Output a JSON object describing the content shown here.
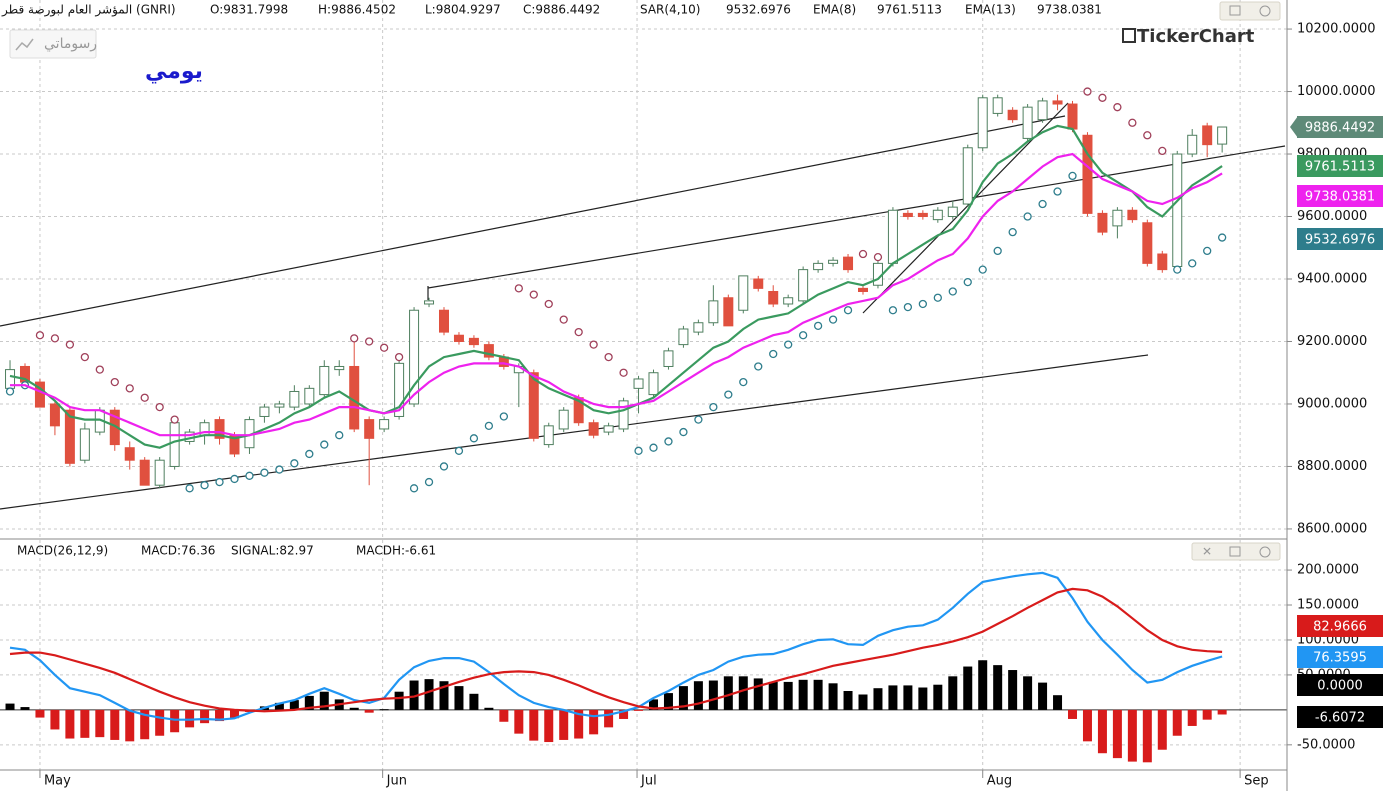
{
  "header": {
    "interval": "يومي",
    "drawings_button": "رسوماتي",
    "logo": "TickerChart"
  },
  "chart_data": [
    {
      "type": "candlestick",
      "title": "المؤشر العام لبورصة قطر (GNRI)",
      "ohlc_labels": [
        "O:9831.7998",
        "H:9886.4502",
        "L:9804.9297",
        "C:9886.4492"
      ],
      "close_badge": "9886.4492",
      "up_color": "#ffffff",
      "up_edge": "#4f7f5f",
      "down_color": "#e0503f",
      "badge_color": "#5e8a78",
      "x": [
        0,
        1,
        2,
        3,
        4,
        5,
        6,
        7,
        8,
        9,
        10,
        11,
        12,
        13,
        14,
        15,
        16,
        17,
        18,
        19,
        20,
        21,
        22,
        23,
        24,
        25,
        26,
        27,
        28,
        29,
        30,
        31,
        32,
        33,
        34,
        35,
        36,
        37,
        38,
        39,
        40,
        41,
        42,
        43,
        44,
        45,
        46,
        47,
        48,
        49,
        50,
        51,
        52,
        53,
        54,
        55,
        56,
        57,
        58,
        59,
        60,
        61,
        62,
        63,
        64,
        65,
        66,
        67,
        68,
        69,
        70,
        71,
        72,
        73,
        74,
        75,
        76,
        77,
        78,
        79,
        80,
        81
      ],
      "open": [
        9050,
        9120,
        9070,
        9000,
        8980,
        8820,
        8910,
        8980,
        8860,
        8820,
        8740,
        8800,
        8880,
        8900,
        8950,
        8900,
        8860,
        8960,
        8990,
        8990,
        9000,
        9030,
        9110,
        9120,
        8950,
        8920,
        8960,
        9000,
        9320,
        9300,
        9220,
        9210,
        9190,
        9150,
        9100,
        9100,
        8870,
        8920,
        9020,
        8940,
        8910,
        8920,
        9050,
        9030,
        9120,
        9190,
        9230,
        9260,
        9340,
        9300,
        9400,
        9360,
        9320,
        9330,
        9430,
        9450,
        9470,
        9370,
        9380,
        9450,
        9610,
        9610,
        9590,
        9600,
        9640,
        9820,
        9930,
        9940,
        9850,
        9910,
        9970,
        9960,
        9860,
        9610,
        9570,
        9620,
        9580,
        9480,
        9440,
        9800,
        9890,
        9831.7998
      ],
      "high": [
        9140,
        9130,
        9080,
        9010,
        8990,
        8940,
        8990,
        8990,
        8880,
        8830,
        8830,
        8960,
        8920,
        8950,
        8960,
        8910,
        8960,
        9000,
        9010,
        9060,
        9060,
        9140,
        9140,
        9200,
        8960,
        8960,
        9140,
        9310,
        9340,
        9310,
        9230,
        9220,
        9200,
        9160,
        9130,
        9110,
        8940,
        8990,
        9030,
        8950,
        8940,
        9020,
        9090,
        9110,
        9180,
        9250,
        9270,
        9380,
        9350,
        9410,
        9410,
        9380,
        9350,
        9440,
        9460,
        9470,
        9480,
        9380,
        9460,
        9630,
        9620,
        9620,
        9630,
        9650,
        9830,
        9990,
        9990,
        9950,
        9960,
        9980,
        9990,
        9970,
        9870,
        9620,
        9630,
        9630,
        9590,
        9490,
        9810,
        9880,
        9900,
        9886.4502
      ],
      "low": [
        9030,
        9060,
        8990,
        8900,
        8800,
        8810,
        8900,
        8850,
        8790,
        8740,
        8730,
        8790,
        8870,
        8870,
        8870,
        8830,
        8840,
        8940,
        8970,
        8980,
        8990,
        9020,
        9090,
        8910,
        8740,
        8910,
        8950,
        8990,
        9310,
        9220,
        9190,
        9180,
        9140,
        9110,
        8990,
        8880,
        8860,
        8910,
        8930,
        8890,
        8900,
        8910,
        8970,
        9020,
        9110,
        9180,
        9220,
        9250,
        9250,
        9290,
        9360,
        9310,
        9310,
        9320,
        9420,
        9440,
        9420,
        9350,
        9370,
        9440,
        9590,
        9590,
        9580,
        9590,
        9630,
        9810,
        9920,
        9900,
        9840,
        9900,
        9940,
        9870,
        9600,
        9540,
        9530,
        9580,
        9440,
        9420,
        9420,
        9790,
        9790,
        9804.9297
      ],
      "close": [
        9110,
        9070,
        8990,
        8930,
        8810,
        8920,
        8980,
        8870,
        8820,
        8740,
        8820,
        8940,
        8910,
        8940,
        8890,
        8840,
        8950,
        8990,
        9000,
        9040,
        9050,
        9120,
        9120,
        8920,
        8890,
        8950,
        9130,
        9300,
        9330,
        9230,
        9200,
        9190,
        9150,
        9120,
        9120,
        8890,
        8930,
        8980,
        8940,
        8900,
        8930,
        9010,
        9080,
        9100,
        9170,
        9240,
        9260,
        9330,
        9250,
        9410,
        9370,
        9320,
        9340,
        9430,
        9450,
        9460,
        9430,
        9360,
        9450,
        9620,
        9600,
        9600,
        9620,
        9630,
        9820,
        9980,
        9980,
        9910,
        9950,
        9970,
        9960,
        9880,
        9610,
        9550,
        9620,
        9590,
        9450,
        9430,
        9800,
        9860,
        9830,
        9886.4492
      ],
      "series": [
        {
          "name": "SAR(4,10)",
          "value_label": "9532.6976",
          "style": "dots",
          "color": "#2e7d8c",
          "color_above": "#a0405a",
          "values": [
            9040,
            9060,
            9220,
            9210,
            9190,
            9150,
            9110,
            9070,
            9050,
            9020,
            8990,
            8950,
            8730,
            8740,
            8750,
            8760,
            8770,
            8780,
            8790,
            8810,
            8840,
            8870,
            8900,
            9210,
            9200,
            9180,
            9150,
            8730,
            8750,
            8800,
            8850,
            8890,
            8930,
            8960,
            9370,
            9350,
            9320,
            9270,
            9230,
            9190,
            9150,
            9100,
            8850,
            8860,
            8880,
            8910,
            8950,
            8990,
            9030,
            9070,
            9120,
            9160,
            9190,
            9220,
            9250,
            9270,
            9300,
            9480,
            9470,
            9300,
            9310,
            9320,
            9340,
            9360,
            9390,
            9430,
            9490,
            9550,
            9600,
            9640,
            9680,
            9730,
            10000,
            9980,
            9950,
            9900,
            9860,
            9810,
            9430,
            9450,
            9490,
            9532.6976
          ]
        },
        {
          "name": "EMA(8)",
          "value_label": "9761.5113",
          "style": "line",
          "color": "#3a9a5f",
          "values": [
            9090,
            9080,
            9050,
            9010,
            8960,
            8950,
            8950,
            8930,
            8900,
            8870,
            8860,
            8880,
            8890,
            8900,
            8900,
            8890,
            8900,
            8920,
            8940,
            8970,
            8990,
            9020,
            9040,
            9010,
            8980,
            8970,
            8990,
            9060,
            9120,
            9150,
            9160,
            9170,
            9160,
            9150,
            9140,
            9080,
            9050,
            9030,
            9010,
            8980,
            8970,
            8980,
            9000,
            9020,
            9060,
            9100,
            9140,
            9180,
            9200,
            9240,
            9270,
            9280,
            9290,
            9320,
            9350,
            9370,
            9390,
            9380,
            9400,
            9450,
            9480,
            9510,
            9540,
            9560,
            9620,
            9710,
            9770,
            9800,
            9840,
            9870,
            9890,
            9880,
            9800,
            9740,
            9710,
            9680,
            9630,
            9600,
            9650,
            9700,
            9730,
            9761.5113
          ]
        },
        {
          "name": "EMA(13)",
          "value_label": "9738.0381",
          "style": "line",
          "color": "#ee22ee",
          "values": [
            9060,
            9060,
            9040,
            9020,
            8990,
            8980,
            8980,
            8960,
            8940,
            8920,
            8900,
            8900,
            8900,
            8910,
            8910,
            8900,
            8900,
            8910,
            8920,
            8940,
            8950,
            8970,
            8990,
            8990,
            8980,
            8970,
            8980,
            9030,
            9070,
            9100,
            9120,
            9130,
            9130,
            9130,
            9120,
            9090,
            9070,
            9040,
            9020,
            9000,
            8990,
            8990,
            9000,
            9010,
            9040,
            9070,
            9100,
            9130,
            9150,
            9180,
            9200,
            9220,
            9230,
            9260,
            9280,
            9300,
            9320,
            9330,
            9340,
            9380,
            9400,
            9430,
            9460,
            9480,
            9530,
            9600,
            9650,
            9680,
            9720,
            9760,
            9790,
            9800,
            9760,
            9720,
            9700,
            9680,
            9650,
            9640,
            9660,
            9690,
            9710,
            9738.0381
          ]
        }
      ],
      "xlim": [
        -0.67,
        85.2
      ],
      "xticks": [
        2,
        24.9,
        41.9,
        65,
        82.2
      ],
      "ylim": [
        8571,
        10293
      ],
      "yticks": [
        {
          "value": 10200,
          "label": "10200.0000"
        },
        {
          "value": 10000,
          "label": "10000.0000"
        },
        {
          "value": 9800,
          "label": "9800.0000"
        },
        {
          "value": 9600,
          "label": "9600.0000"
        },
        {
          "value": 9400,
          "label": "9400.0000"
        },
        {
          "value": 9200,
          "label": "9200.0000"
        },
        {
          "value": 9000,
          "label": "9000.0000"
        },
        {
          "value": 8800,
          "label": "8800.0000"
        },
        {
          "value": 8600,
          "label": "8600.0000"
        }
      ],
      "grid": true
    },
    {
      "type": "macd",
      "title": "MACD(26,12,9)",
      "x": [
        0,
        1,
        2,
        3,
        4,
        5,
        6,
        7,
        8,
        9,
        10,
        11,
        12,
        13,
        14,
        15,
        16,
        17,
        18,
        19,
        20,
        21,
        22,
        23,
        24,
        25,
        26,
        27,
        28,
        29,
        30,
        31,
        32,
        33,
        34,
        35,
        36,
        37,
        38,
        39,
        40,
        41,
        42,
        43,
        44,
        45,
        46,
        47,
        48,
        49,
        50,
        51,
        52,
        53,
        54,
        55,
        56,
        57,
        58,
        59,
        60,
        61,
        62,
        63,
        64,
        65,
        66,
        67,
        68,
        69,
        70,
        71,
        72,
        73,
        74,
        75,
        76,
        77,
        78,
        79,
        80,
        81
      ],
      "series": [
        {
          "label": "MACD:76.36",
          "badge": "76.3595",
          "style": "line",
          "color": "#2196f3",
          "values": [
            89,
            86,
            71,
            50,
            31,
            26,
            21,
            10,
            -1,
            -7,
            -11,
            -14,
            -14,
            -13,
            -14,
            -12,
            -4,
            3,
            9,
            14,
            23,
            31,
            23,
            14,
            10,
            17,
            43,
            61,
            70,
            74,
            74,
            69,
            54,
            37,
            21,
            10,
            4,
            0,
            -6,
            -9,
            -7,
            -2,
            4,
            17,
            27,
            39,
            50,
            57,
            69,
            76,
            79,
            80,
            86,
            94,
            100,
            101,
            94,
            93,
            106,
            114,
            119,
            121,
            129,
            146,
            166,
            183,
            187,
            191,
            194,
            196,
            189,
            160,
            126,
            100,
            79,
            57,
            39,
            43,
            54,
            63,
            70,
            76.36
          ]
        },
        {
          "label": "SIGNAL:82.97",
          "badge": "82.9666",
          "style": "line",
          "color": "#d81b1b",
          "values": [
            80,
            82,
            82,
            78,
            72,
            66,
            60,
            53,
            44,
            35,
            26,
            18,
            11,
            6,
            2,
            0,
            -1,
            -2,
            -1,
            0,
            3,
            5,
            8,
            11,
            14,
            16,
            17,
            19,
            26,
            33,
            40,
            46,
            51,
            54,
            55,
            54,
            50,
            43,
            35,
            26,
            18,
            11,
            5,
            2,
            3,
            5,
            9,
            15,
            21,
            28,
            34,
            40,
            46,
            51,
            57,
            63,
            67,
            71,
            75,
            79,
            84,
            89,
            93,
            98,
            104,
            112,
            123,
            134,
            146,
            157,
            168,
            173,
            171,
            162,
            148,
            131,
            114,
            100,
            91,
            86,
            84,
            82.97
          ]
        },
        {
          "label": "MACDH:-6.61",
          "badge": "-6.6072",
          "style": "histogram",
          "color": "#000000",
          "color_negative": "#d81b1b",
          "values": [
            9,
            4,
            -11,
            -28,
            -41,
            -40,
            -39,
            -43,
            -45,
            -42,
            -37,
            -32,
            -25,
            -19,
            -16,
            -12,
            -3,
            5,
            10,
            14,
            20,
            26,
            15,
            3,
            -4,
            1,
            26,
            42,
            44,
            41,
            34,
            23,
            3,
            -17,
            -34,
            -44,
            -46,
            -43,
            -41,
            -35,
            -25,
            -13,
            -1,
            15,
            24,
            34,
            41,
            42,
            48,
            48,
            45,
            40,
            40,
            43,
            43,
            38,
            27,
            22,
            31,
            35,
            35,
            32,
            36,
            48,
            62,
            71,
            64,
            57,
            48,
            39,
            21,
            -13,
            -45,
            -62,
            -69,
            -74,
            -75,
            -57,
            -37,
            -23,
            -14,
            -6.61
          ]
        }
      ],
      "zero_badge": "0.0000",
      "xlim": [
        -0.67,
        85.2
      ],
      "xticks": [
        {
          "value": 2,
          "label": "May"
        },
        {
          "value": 24.9,
          "label": "Jun"
        },
        {
          "value": 41.9,
          "label": "Jul"
        },
        {
          "value": 65,
          "label": "Aug"
        },
        {
          "value": 82.2,
          "label": "Sep"
        }
      ],
      "ylim": [
        -86,
        243
      ],
      "yticks": [
        {
          "value": 200,
          "label": "200.0000"
        },
        {
          "value": 150,
          "label": "150.0000"
        },
        {
          "value": 100,
          "label": "100.0000"
        },
        {
          "value": 50,
          "label": "50.0000"
        },
        {
          "value": -50,
          "label": "-50.0000"
        }
      ],
      "grid": true
    }
  ]
}
